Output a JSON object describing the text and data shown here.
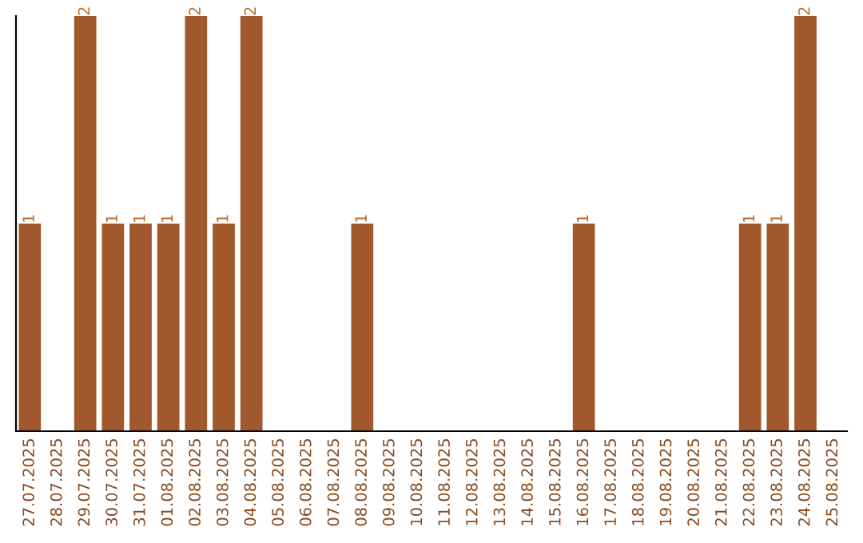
{
  "chart_data": {
    "type": "bar",
    "categories": [
      "27.07.2025",
      "28.07.2025",
      "29.07.2025",
      "30.07.2025",
      "31.07.2025",
      "01.08.2025",
      "02.08.2025",
      "03.08.2025",
      "04.08.2025",
      "05.08.2025",
      "06.08.2025",
      "07.08.2025",
      "08.08.2025",
      "09.08.2025",
      "10.08.2025",
      "11.08.2025",
      "12.08.2025",
      "13.08.2025",
      "14.08.2025",
      "15.08.2025",
      "16.08.2025",
      "17.08.2025",
      "18.08.2025",
      "19.08.2025",
      "20.08.2025",
      "21.08.2025",
      "22.08.2025",
      "23.08.2025",
      "24.08.2025",
      "25.08.2025"
    ],
    "values": [
      1,
      0,
      2,
      1,
      1,
      1,
      2,
      1,
      2,
      0,
      0,
      0,
      1,
      0,
      0,
      0,
      0,
      0,
      0,
      0,
      1,
      0,
      0,
      0,
      0,
      0,
      1,
      1,
      2,
      0
    ],
    "value_labels": [
      "1",
      null,
      "2",
      "1",
      "1",
      "1",
      "2",
      "1",
      "2",
      null,
      null,
      null,
      "1",
      null,
      null,
      null,
      null,
      null,
      null,
      null,
      "1",
      null,
      null,
      null,
      null,
      null,
      "1",
      "1",
      "2",
      null
    ],
    "color": "#a0582c",
    "ylim": [
      0,
      2
    ],
    "tick_labels": "x",
    "grid": false,
    "legend": false
  }
}
